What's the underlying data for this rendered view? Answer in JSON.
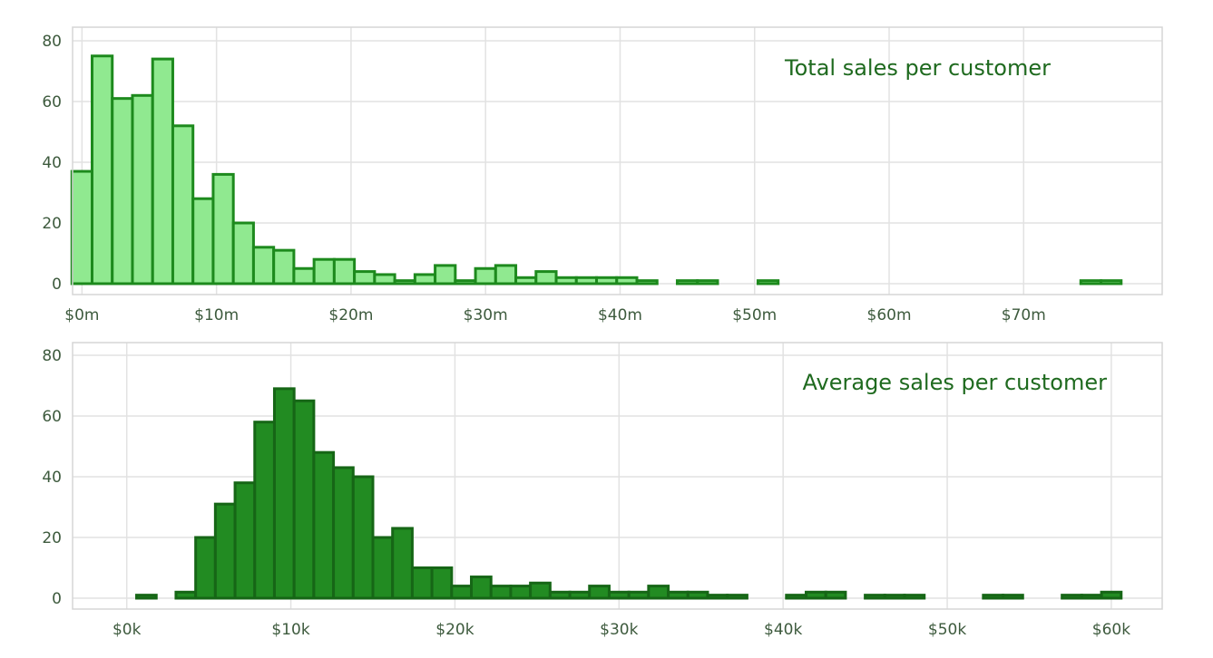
{
  "chart_data": [
    {
      "type": "bar",
      "title": "Total sales per customer",
      "colors": {
        "fill": "#90e990",
        "stroke": "#1d8a1d"
      },
      "x_range": [
        -0.7,
        80.3
      ],
      "ylim": [
        0,
        80
      ],
      "bin_width": 1.5,
      "bins_start": -0.75,
      "y_ticks": [
        0,
        20,
        40,
        60,
        80
      ],
      "x_ticks": [
        {
          "value": 0,
          "label": "$0m"
        },
        {
          "value": 10,
          "label": "$10m"
        },
        {
          "value": 20,
          "label": "$20m"
        },
        {
          "value": 30,
          "label": "$30m"
        },
        {
          "value": 40,
          "label": "$40m"
        },
        {
          "value": 50,
          "label": "$50m"
        },
        {
          "value": 60,
          "label": "$60m"
        },
        {
          "value": 70,
          "label": "$70m"
        }
      ],
      "grid": true,
      "values": [
        37,
        75,
        61,
        62,
        74,
        52,
        28,
        36,
        20,
        12,
        11,
        5,
        8,
        8,
        4,
        3,
        1,
        3,
        6,
        1,
        5,
        6,
        2,
        4,
        2,
        2,
        2,
        2,
        1,
        0,
        1,
        1,
        0,
        0,
        1,
        0,
        0,
        0,
        0,
        0,
        0,
        0,
        0,
        0,
        0,
        0,
        0,
        0,
        0,
        0,
        1,
        1
      ]
    },
    {
      "type": "bar",
      "title": "Average sales per customer",
      "colors": {
        "fill": "#228b22",
        "stroke": "#166616"
      },
      "x_range": [
        -3.3,
        63.1
      ],
      "ylim": [
        0,
        80
      ],
      "bin_width": 1.2,
      "bins_start": 0.6,
      "y_ticks": [
        0,
        20,
        40,
        60,
        80
      ],
      "x_ticks": [
        {
          "value": 0,
          "label": "$0k"
        },
        {
          "value": 10,
          "label": "$10k"
        },
        {
          "value": 20,
          "label": "$20k"
        },
        {
          "value": 30,
          "label": "$30k"
        },
        {
          "value": 40,
          "label": "$40k"
        },
        {
          "value": 50,
          "label": "$50k"
        },
        {
          "value": 60,
          "label": "$60k"
        }
      ],
      "grid": true,
      "values": [
        1,
        0,
        2,
        20,
        31,
        38,
        58,
        69,
        65,
        48,
        43,
        40,
        20,
        23,
        10,
        10,
        4,
        7,
        4,
        4,
        5,
        2,
        2,
        4,
        2,
        2,
        4,
        2,
        2,
        1,
        1,
        0,
        0,
        1,
        2,
        2,
        0,
        1,
        1,
        1,
        0,
        0,
        0,
        1,
        1,
        0,
        0,
        1,
        1,
        2
      ]
    }
  ]
}
